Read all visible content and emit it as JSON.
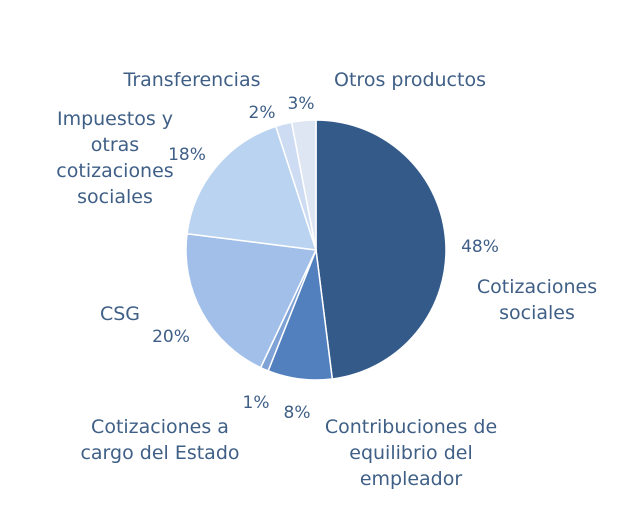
{
  "chart_data": {
    "type": "pie",
    "title": "",
    "slices": [
      {
        "label": "Cotizaciones sociales",
        "value": 48,
        "pct_text": "48%",
        "color": "#345a8a"
      },
      {
        "label": "Contribuciones de equilibrio del empleador",
        "value": 8,
        "pct_text": "8%",
        "color": "#5280be"
      },
      {
        "label": "Cotizaciones a cargo del Estado",
        "value": 1,
        "pct_text": "1%",
        "color": "#7ea1d6"
      },
      {
        "label": "CSG",
        "value": 20,
        "pct_text": "20%",
        "color": "#a1bfe9"
      },
      {
        "label": "Impuestos y otras cotizaciones sociales",
        "value": 18,
        "pct_text": "18%",
        "color": "#bad3f0"
      },
      {
        "label": "Transferencias",
        "value": 2,
        "pct_text": "2%",
        "color": "#cddcf2"
      },
      {
        "label": "Otros productos",
        "value": 3,
        "pct_text": "3%",
        "color": "#dfe6f3"
      }
    ],
    "legend": "none"
  }
}
